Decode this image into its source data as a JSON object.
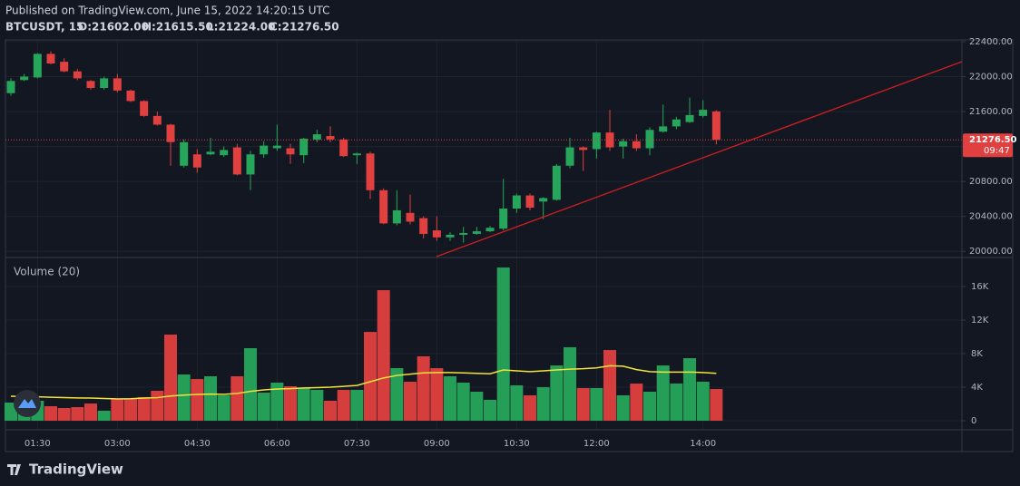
{
  "chart_data": {
    "type": "candlestick",
    "published": "Published on TradingView.com, June 15, 2022 14:20:15 UTC",
    "symbol": "BTCUSDT, 15",
    "ohlc_labels": [
      "O:21602.00",
      "H:21615.50",
      "L:21224.00",
      "C:21276.50"
    ],
    "volume_label": "Volume (20)",
    "last_price_label": "21276.50",
    "countdown": "09:47",
    "brand": "TradingView",
    "categories": [
      null,
      null,
      "01:30",
      null,
      null,
      null,
      null,
      null,
      "03:00",
      null,
      null,
      null,
      null,
      null,
      "04:30",
      null,
      null,
      null,
      null,
      null,
      "06:00",
      null,
      null,
      null,
      null,
      null,
      "07:30",
      null,
      null,
      null,
      null,
      null,
      "09:00",
      null,
      null,
      null,
      null,
      null,
      "10:30",
      null,
      null,
      null,
      null,
      null,
      "12:00",
      null,
      null,
      null,
      null,
      null,
      null,
      null,
      "14:00",
      null
    ],
    "open": [
      21810,
      21960,
      21990,
      22260,
      22170,
      22060,
      21950,
      21870,
      21980,
      21840,
      21720,
      21550,
      21450,
      20980,
      21110,
      21110,
      21100,
      21190,
      20880,
      21110,
      21180,
      21180,
      21100,
      21280,
      21320,
      21280,
      21100,
      21120,
      20700,
      20320,
      20440,
      20380,
      20240,
      20160,
      20190,
      20200,
      20230,
      20260,
      20490,
      20640,
      20570,
      20590,
      20980,
      21190,
      21170,
      21360,
      21200,
      21260,
      21180,
      21370,
      21430,
      21480,
      21550,
      21602
    ],
    "high": [
      21980,
      22030,
      22270,
      22290,
      22210,
      22090,
      21960,
      22000,
      22030,
      21850,
      21730,
      21600,
      21460,
      21280,
      21170,
      21300,
      21200,
      21230,
      21150,
      21260,
      21450,
      21230,
      21300,
      21390,
      21430,
      21300,
      21130,
      21140,
      20720,
      20700,
      20650,
      20400,
      20400,
      20220,
      20280,
      20280,
      20290,
      20830,
      20660,
      20660,
      20620,
      21000,
      21300,
      21200,
      21370,
      21620,
      21290,
      21340,
      21420,
      21680,
      21540,
      21760,
      21730,
      21615.5
    ],
    "low": [
      21780,
      21950,
      21980,
      22140,
      22050,
      21960,
      21850,
      21850,
      21820,
      21710,
      21540,
      21440,
      20980,
      20960,
      20900,
      21100,
      21080,
      20870,
      20700,
      21070,
      21150,
      21000,
      21010,
      21250,
      21250,
      21080,
      21000,
      20600,
      20310,
      20300,
      20310,
      20150,
      20120,
      20120,
      20100,
      20190,
      20220,
      20240,
      20440,
      20470,
      20370,
      20580,
      20950,
      20920,
      21060,
      21150,
      21060,
      21150,
      21100,
      21360,
      21400,
      21470,
      21530,
      21224
    ],
    "close": [
      21950,
      22000,
      22260,
      22150,
      22060,
      21980,
      21870,
      21980,
      21840,
      21720,
      21550,
      21450,
      21250,
      21250,
      20960,
      21140,
      21160,
      20880,
      21110,
      21210,
      21210,
      21110,
      21290,
      21340,
      21280,
      21090,
      21120,
      20700,
      20320,
      20470,
      20340,
      20200,
      20160,
      20190,
      20210,
      20230,
      20270,
      20490,
      20640,
      20500,
      20610,
      20980,
      21190,
      21160,
      21360,
      21190,
      21260,
      21180,
      21390,
      21430,
      21510,
      21560,
      21620,
      21276.5
    ],
    "volume": [
      2160,
      2590,
      2380,
      1730,
      1510,
      1620,
      2050,
      1190,
      2590,
      2590,
      2810,
      3570,
      10270,
      5510,
      4970,
      5300,
      3030,
      5300,
      8650,
      3350,
      4540,
      4110,
      3890,
      3680,
      2380,
      3680,
      3680,
      10590,
      15570,
      6270,
      4650,
      7680,
      6270,
      5300,
      4540,
      3460,
      2490,
      18270,
      4220,
      3030,
      4000,
      6590,
      8760,
      3890,
      3890,
      8430,
      3030,
      4430,
      3460,
      6590,
      4430,
      7460,
      4650,
      3780
    ],
    "volume_ma": [
      2920,
      2880,
      2850,
      2800,
      2760,
      2720,
      2700,
      2650,
      2600,
      2620,
      2700,
      2750,
      2950,
      3050,
      3130,
      3180,
      3150,
      3250,
      3500,
      3680,
      3780,
      3820,
      3900,
      3950,
      4000,
      4100,
      4200,
      4650,
      5100,
      5400,
      5550,
      5700,
      5750,
      5750,
      5700,
      5650,
      5600,
      6050,
      5950,
      5850,
      5950,
      6050,
      6150,
      6200,
      6300,
      6550,
      6500,
      6100,
      5850,
      5800,
      5800,
      5800,
      5750,
      5650
    ],
    "up_color": "#26a65b",
    "down_color": "#e0403f",
    "ma_color": "#f2e43a",
    "ylim": [
      19940,
      22420
    ],
    "yticks": [
      {
        "value": 20000,
        "label": "20000.00"
      },
      {
        "value": 20400,
        "label": "20400.00"
      },
      {
        "value": 20800,
        "label": "20800.00"
      },
      {
        "value": 21200,
        "label": "21200.00"
      },
      {
        "value": 21600,
        "label": "21600.00"
      },
      {
        "value": 22000,
        "label": "22000.00"
      },
      {
        "value": 22400,
        "label": "22400.00"
      }
    ],
    "vol_ylim": [
      -650,
      19250
    ],
    "vol_yticks": [
      0,
      {
        "value": 4000,
        "label": "4K"
      },
      {
        "value": 8000,
        "label": "8K"
      },
      {
        "value": 12000,
        "label": "12K"
      },
      {
        "value": 16000,
        "label": "16K"
      }
    ],
    "grid": true
  }
}
